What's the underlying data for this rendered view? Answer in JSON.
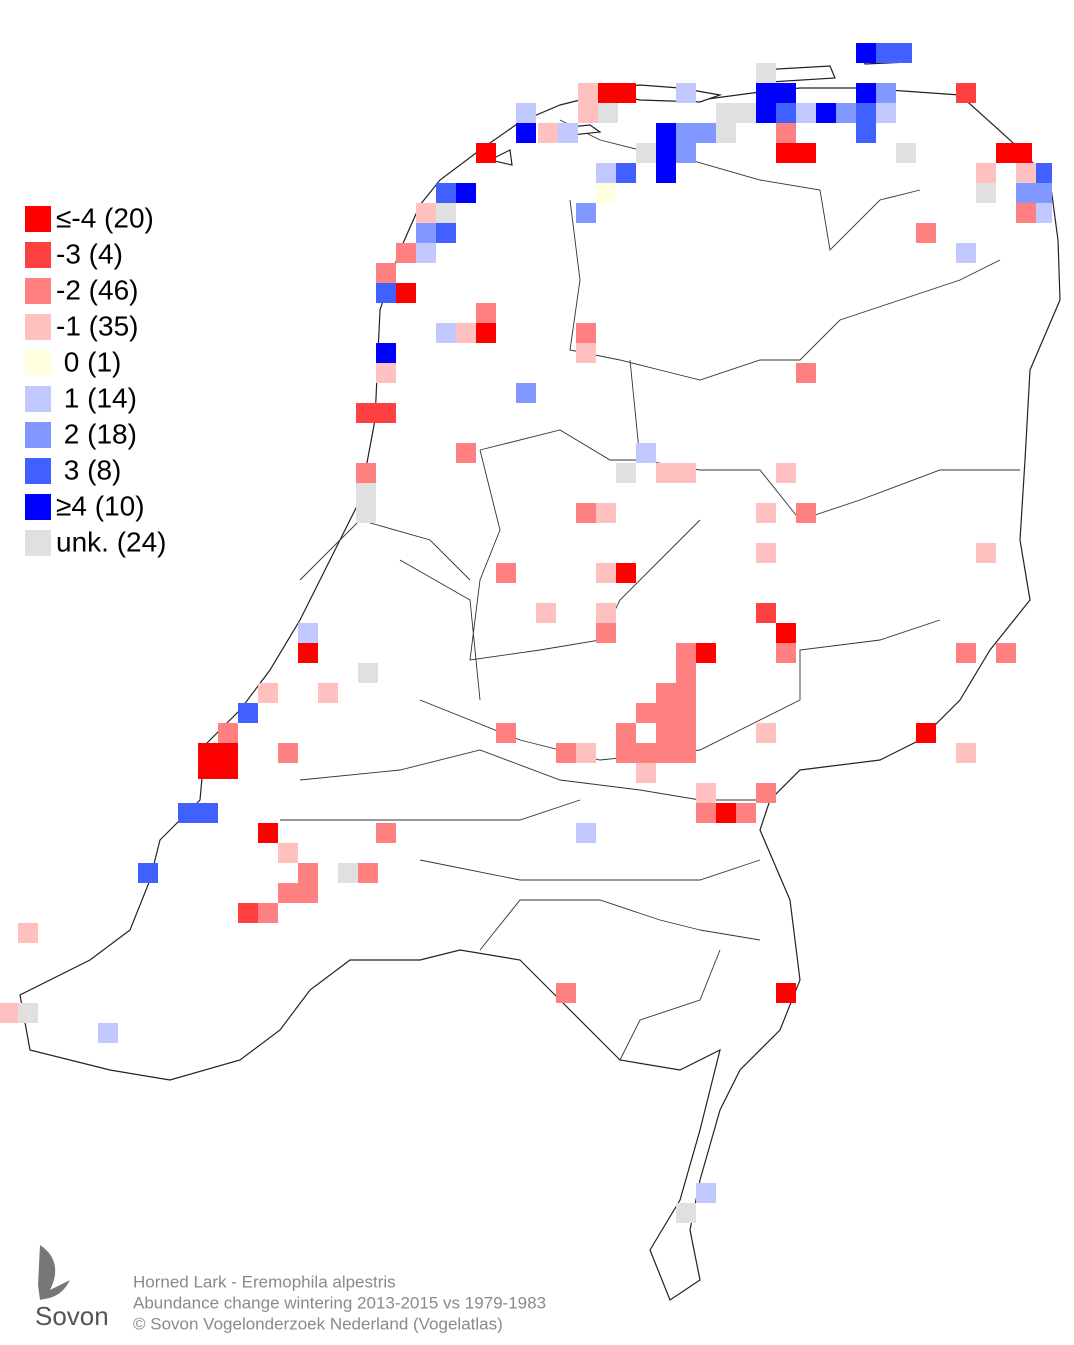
{
  "legend": [
    {
      "label": "≤-4 (20)",
      "color": "#ff0000"
    },
    {
      "label": "-3 (4)",
      "color": "#ff4040"
    },
    {
      "label": "-2 (46)",
      "color": "#ff8080"
    },
    {
      "label": "-1 (35)",
      "color": "#ffc0c0"
    },
    {
      "label": " 0 (1)",
      "color": "#ffffe0"
    },
    {
      "label": " 1 (14)",
      "color": "#c0c8ff"
    },
    {
      "label": " 2 (18)",
      "color": "#8098ff"
    },
    {
      "label": " 3 (8)",
      "color": "#4060ff"
    },
    {
      "label": "≥4 (10)",
      "color": "#0000ff"
    },
    {
      "label": "unk. (24)",
      "color": "#e0e0e0"
    }
  ],
  "caption": [
    "Horned Lark - Eremophila alpestris",
    "Abundance change wintering  2013-2015 vs 1979-1983",
    "© Sovon Vogelonderzoek Nederland (Vogelatlas)"
  ],
  "logo": "Sovon"
}
